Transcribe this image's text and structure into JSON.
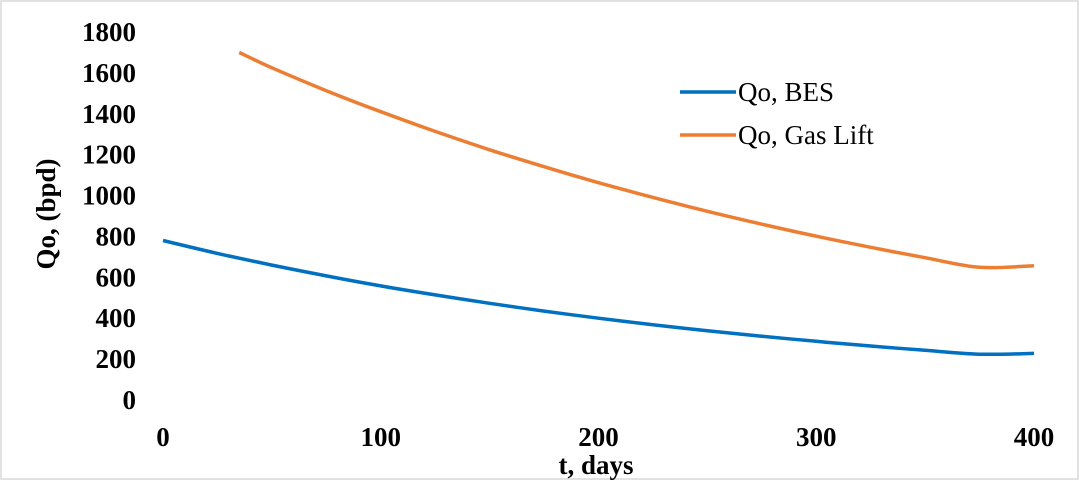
{
  "chart_data": {
    "type": "line",
    "title": "",
    "xlabel": "t, days",
    "ylabel": "Qo, (bpd)",
    "xlim": [
      0,
      400
    ],
    "ylim": [
      0,
      1800
    ],
    "x_ticks": [
      0,
      100,
      200,
      300,
      400
    ],
    "y_ticks": [
      0,
      200,
      400,
      600,
      800,
      1000,
      1200,
      1400,
      1600,
      1800
    ],
    "grid": false,
    "legend_position": "top-right",
    "series": [
      {
        "name": "Qo, BES",
        "color": "#0070c0",
        "x": [
          0,
          25,
          50,
          75,
          100,
          125,
          150,
          175,
          200,
          225,
          250,
          275,
          300,
          325,
          350,
          375,
          400
        ],
        "y": [
          780,
          717,
          660,
          607,
          558,
          514,
          473,
          435,
          400,
          368,
          339,
          312,
          287,
          264,
          243,
          224,
          228
        ]
      },
      {
        "name": "Qo, Gas Lift",
        "color": "#ed7d31",
        "x": [
          35,
          50,
          75,
          100,
          125,
          150,
          175,
          200,
          225,
          250,
          275,
          300,
          325,
          350,
          375,
          400
        ],
        "y": [
          1700,
          1625,
          1513,
          1410,
          1314,
          1224,
          1141,
          1063,
          991,
          923,
          860,
          801,
          747,
          696,
          649,
          657
        ]
      }
    ]
  }
}
